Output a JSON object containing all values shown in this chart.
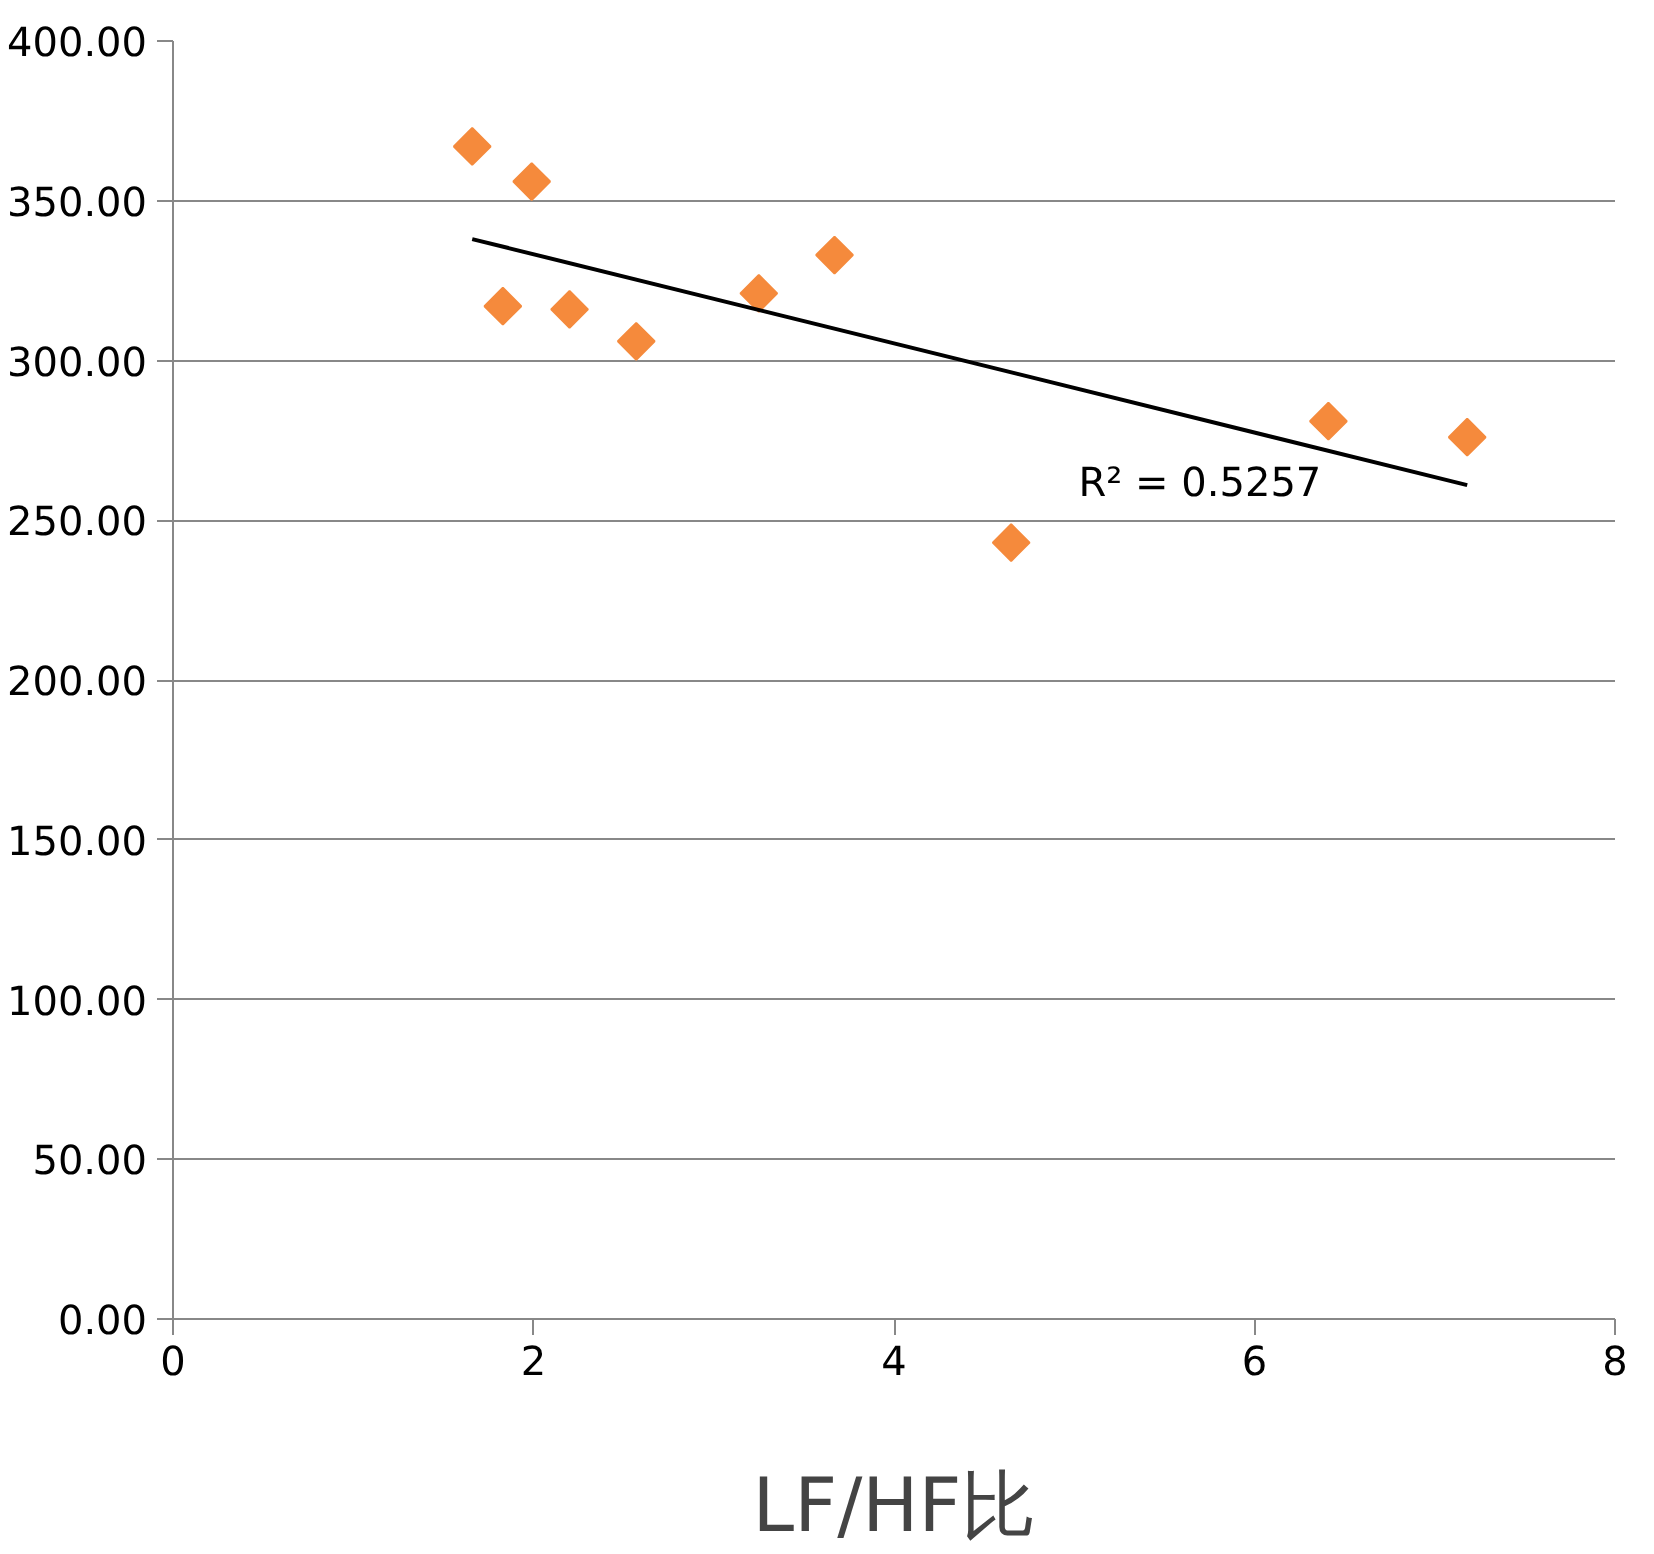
{
  "chart_data": {
    "type": "scatter",
    "xlabel": "LF/HF比",
    "xlim": [
      0,
      8
    ],
    "xticks": [
      0,
      2,
      4,
      6,
      8
    ],
    "ylim": [
      0,
      400
    ],
    "yticks": [
      {
        "value": 0,
        "label": "0.00"
      },
      {
        "value": 50,
        "label": "50.00"
      },
      {
        "value": 100,
        "label": "100.00"
      },
      {
        "value": 150,
        "label": "150.00"
      },
      {
        "value": 200,
        "label": "200.00"
      },
      {
        "value": 250,
        "label": "250.00"
      },
      {
        "value": 300,
        "label": "300.00"
      },
      {
        "value": 350,
        "label": "350.00"
      },
      {
        "value": 400,
        "label": "400.00"
      }
    ],
    "grid": "y",
    "marker": "diamond",
    "series": [
      {
        "color": "#f58a3c",
        "x": [
          1.66,
          1.99,
          1.83,
          2.2,
          2.57,
          3.25,
          3.67,
          4.65,
          6.41,
          7.18
        ],
        "values": [
          367,
          356,
          317,
          316,
          306,
          321,
          333,
          243,
          281,
          276
        ]
      },
      {
        "type": "line",
        "color": "#000000",
        "line_style": "solid",
        "marker": "none",
        "x": [
          1.66,
          7.18
        ],
        "values": [
          338,
          261
        ]
      }
    ],
    "annotations": [
      "R² = 0.5257"
    ]
  }
}
